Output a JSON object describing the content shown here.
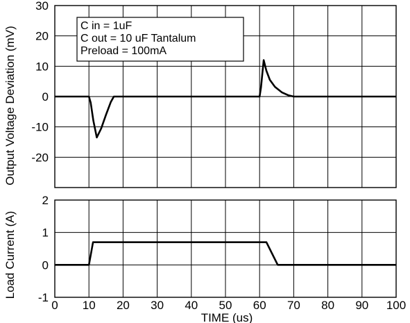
{
  "chart_data": [
    {
      "type": "line",
      "ylabel": "Output Voltage Deviation (mV)",
      "xlabel": "",
      "xlim": [
        0,
        100
      ],
      "ylim": [
        -30,
        30
      ],
      "x_ticks": [
        0,
        10,
        20,
        30,
        40,
        50,
        60,
        70,
        80,
        90,
        100
      ],
      "y_ticks": [
        30,
        20,
        10,
        0,
        -10,
        -20
      ],
      "grid": true,
      "legend": {
        "placement": "top-left",
        "lines": [
          "C in = 1uF",
          "C out = 10 uF  Tantalum",
          "Preload = 100mA"
        ]
      },
      "series": [
        {
          "x": [
            0,
            10,
            10.5,
            11.3,
            12.3,
            13.6,
            15,
            16.4,
            17.3,
            18,
            40,
            56,
            60,
            60.4,
            61.2,
            62,
            63,
            64.5,
            66.5,
            68.5,
            70,
            80,
            100
          ],
          "y": [
            0,
            0,
            -2,
            -8,
            -13.5,
            -10.5,
            -6,
            -1.8,
            0,
            0,
            0,
            0,
            0,
            3,
            12,
            8.5,
            5.5,
            3.2,
            1.4,
            0.4,
            0,
            0,
            0
          ]
        }
      ]
    },
    {
      "type": "line",
      "ylabel": "Load Current (A)",
      "xlabel": "TIME (us)",
      "xlim": [
        0,
        100
      ],
      "ylim": [
        -1,
        2
      ],
      "x_ticks": [
        0,
        10,
        20,
        30,
        40,
        50,
        60,
        70,
        80,
        90,
        100
      ],
      "x_tick_labels": [
        "0",
        "10",
        "20",
        "30",
        "40",
        "50",
        "60",
        "70",
        "80",
        "90",
        "100"
      ],
      "y_ticks": [
        2,
        1,
        0,
        -1
      ],
      "grid": true,
      "series": [
        {
          "x": [
            0,
            10,
            11.2,
            62,
            65.3,
            100
          ],
          "y": [
            0,
            0,
            0.7,
            0.7,
            0,
            0
          ]
        }
      ]
    }
  ]
}
